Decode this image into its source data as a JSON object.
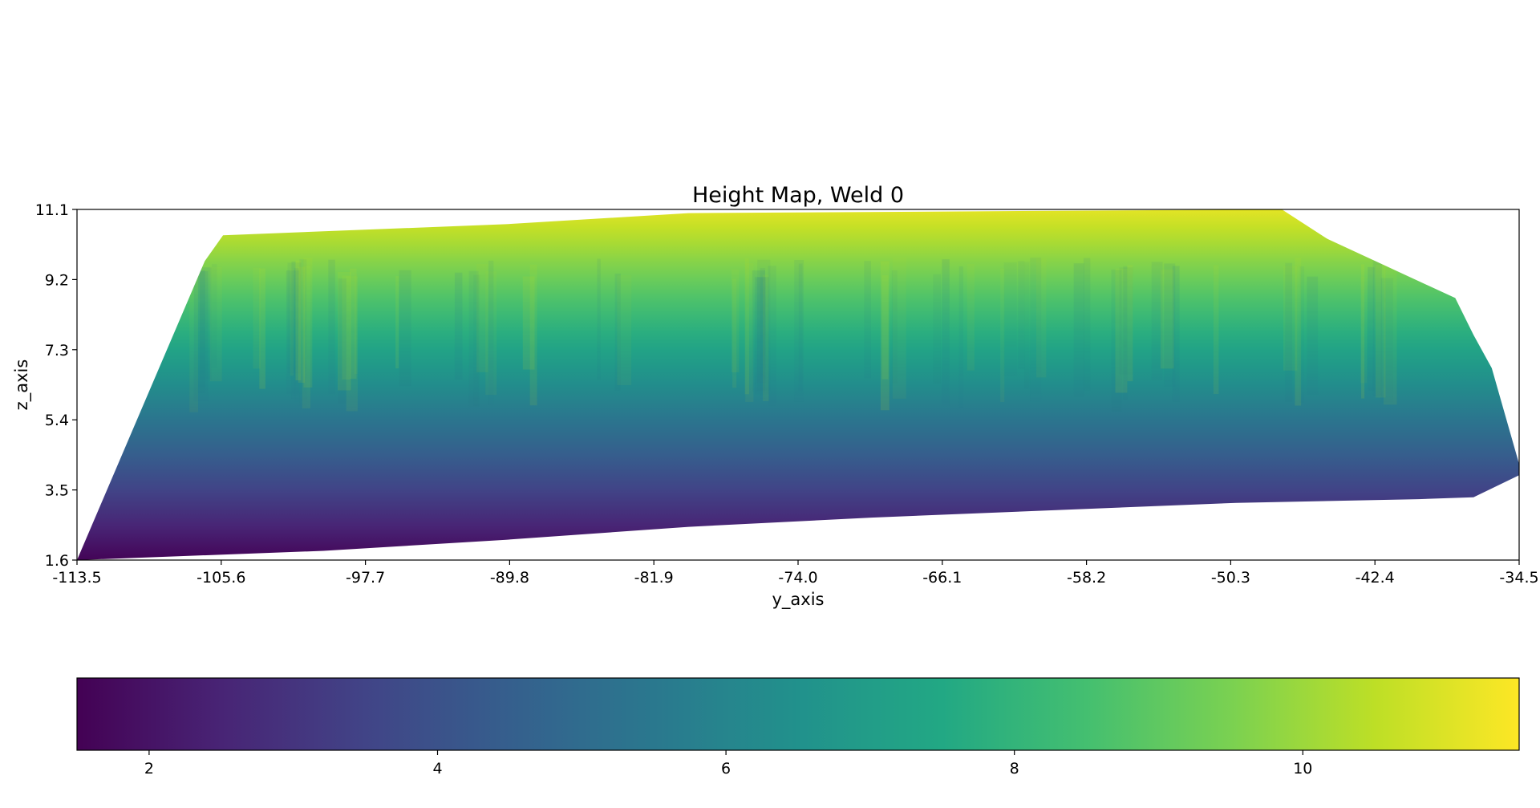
{
  "chart_data": {
    "type": "heatmap",
    "title": "Height Map, Weld 0",
    "xlabel": "y_axis",
    "ylabel": "z_axis",
    "xlim": [
      -113.5,
      -34.5
    ],
    "ylim": [
      1.6,
      11.1
    ],
    "xticks": [
      "-113.5",
      "-105.6",
      "-97.7",
      "-89.8",
      "-81.9",
      "-74.0",
      "-66.1",
      "-58.2",
      "-50.3",
      "-42.4",
      "-34.5"
    ],
    "yticks": [
      "11.1",
      "9.2",
      "7.3",
      "5.4",
      "3.5",
      "1.6"
    ],
    "colormap": "viridis",
    "colorbar": {
      "range": [
        1.5,
        11.5
      ],
      "ticks": [
        "2",
        "4",
        "6",
        "8",
        "10"
      ],
      "orientation": "horizontal"
    },
    "data_region": {
      "top_edge": [
        [
          -106.5,
          9.7
        ],
        [
          -105.5,
          10.4
        ],
        [
          -90,
          10.7
        ],
        [
          -80,
          11.0
        ],
        [
          -47.5,
          11.1
        ],
        [
          -45,
          10.3
        ],
        [
          -38,
          8.7
        ],
        [
          -37,
          7.7
        ],
        [
          -36,
          6.8
        ],
        [
          -34.5,
          4.2
        ]
      ],
      "bottom_edge": [
        [
          -113.5,
          1.6
        ],
        [
          -100,
          1.85
        ],
        [
          -90,
          2.15
        ],
        [
          -80,
          2.5
        ],
        [
          -70,
          2.75
        ],
        [
          -60,
          2.95
        ],
        [
          -50,
          3.15
        ],
        [
          -40,
          3.25
        ],
        [
          -37,
          3.3
        ],
        [
          -34.5,
          3.9
        ]
      ]
    }
  }
}
